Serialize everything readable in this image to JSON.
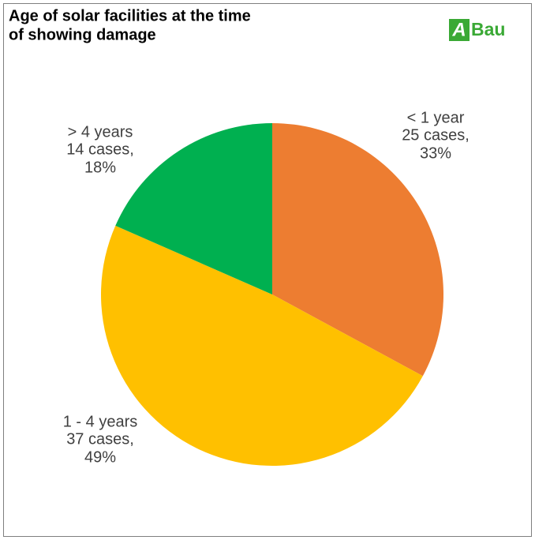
{
  "logo": {
    "mark": "A",
    "text": "Bau"
  },
  "chart_data": {
    "type": "pie",
    "title": [
      "Age of solar facilities at the time",
      "of showing damage"
    ],
    "categories": [
      "< 1 year",
      "1 - 4 years",
      "> 4 years"
    ],
    "values": [
      25,
      37,
      14
    ],
    "value_labels": [
      "25 cases,",
      "37 cases,",
      "14 cases,"
    ],
    "percent_labels": [
      "33%",
      "49%",
      "18%"
    ],
    "colors": [
      "#ED7D31",
      "#FFC000",
      "#00B050"
    ]
  }
}
